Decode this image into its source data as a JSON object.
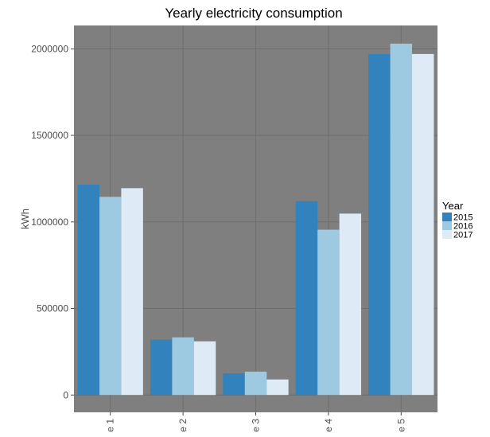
{
  "chart_data": {
    "type": "bar",
    "title": "Yearly electricity consumption",
    "xlabel": "",
    "ylabel": "kWh",
    "categories": [
      "e 1",
      "e 2",
      "e 3",
      "e 4",
      "e 5"
    ],
    "series": [
      {
        "name": "2015",
        "color": "#3182bd",
        "values": [
          1215000,
          320000,
          125000,
          1120000,
          1970000
        ]
      },
      {
        "name": "2016",
        "color": "#9ecae1",
        "values": [
          1145000,
          333000,
          135000,
          955000,
          2030000
        ]
      },
      {
        "name": "2017",
        "color": "#deebf7",
        "values": [
          1195000,
          310000,
          90000,
          1048000,
          1970000
        ]
      }
    ],
    "ylim": [
      -100000,
      2135000
    ],
    "yticks": [
      0,
      500000,
      1000000,
      1500000,
      2000000
    ],
    "ytick_labels": [
      "0",
      "500000",
      "1000000",
      "1500000",
      "2000000"
    ],
    "legend": {
      "title": "Year",
      "position": "right"
    },
    "grid": true,
    "panel_color": "#7f7f7f",
    "grid_color": "#6e6e6e"
  }
}
